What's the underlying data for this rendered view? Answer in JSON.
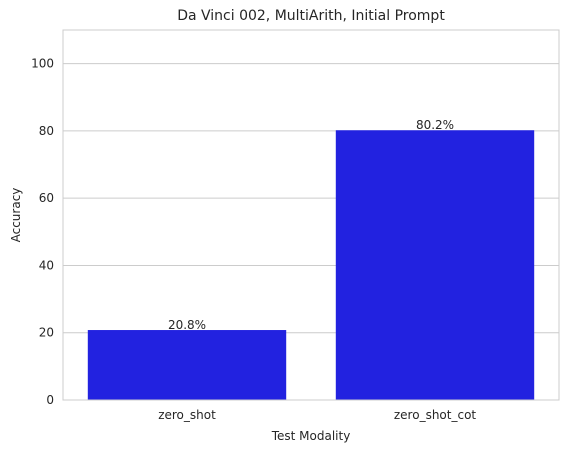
{
  "chart_data": {
    "type": "bar",
    "title": "Da Vinci 002, MultiArith, Initial Prompt",
    "xlabel": "Test Modality",
    "ylabel": "Accuracy",
    "categories": [
      "zero_shot",
      "zero_shot_cot"
    ],
    "values": [
      20.8,
      80.2
    ],
    "value_labels": [
      "20.8%",
      "80.2%"
    ],
    "ylim": [
      0,
      110
    ],
    "yticks": [
      0,
      20,
      40,
      60,
      80,
      100
    ],
    "grid": true,
    "bar_color": "#2222e0",
    "legend": false
  }
}
